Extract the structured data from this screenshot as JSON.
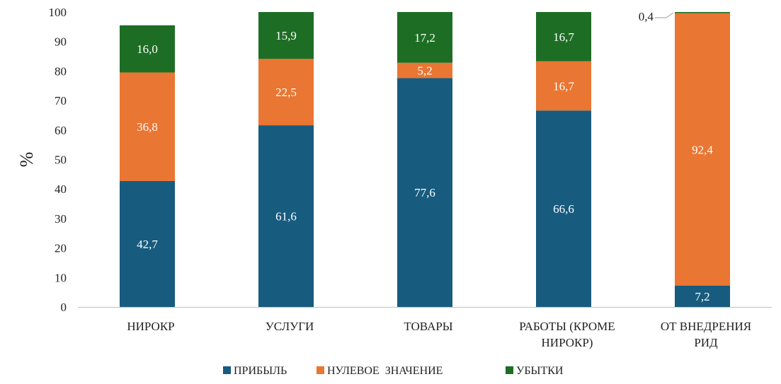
{
  "chart_data": {
    "type": "bar",
    "stacked": true,
    "categories": [
      [
        "НИРОКР"
      ],
      [
        "УСЛУГИ"
      ],
      [
        "ТОВАРЫ"
      ],
      [
        "РАБОТЫ (КРОМЕ",
        "НИРОКР)"
      ],
      [
        "ОТ ВНЕДРЕНИЯ",
        "РИД"
      ]
    ],
    "series": [
      {
        "name": "ПРИБЫЛЬ",
        "color": "#175b7e",
        "label_color": "#ffffff",
        "values": [
          42.7,
          61.6,
          77.6,
          66.6,
          7.2
        ],
        "labels": [
          "42,7",
          "61,6",
          "77,6",
          "66,6",
          "7,2"
        ]
      },
      {
        "name": "НУЛЕВОЕ  ЗНАЧЕНИЕ",
        "color": "#e97632",
        "label_color": "#ffffff",
        "values": [
          36.8,
          22.5,
          5.2,
          16.7,
          92.4
        ],
        "labels": [
          "36,8",
          "22,5",
          "5,2",
          "16,7",
          "92,4"
        ]
      },
      {
        "name": "УБЫТКИ",
        "color": "#1d6e24",
        "label_color": "#ffffff",
        "values": [
          16.0,
          15.9,
          17.2,
          16.7,
          0.4
        ],
        "labels": [
          "16,0",
          "15,9",
          "17,2",
          "16,7",
          "0,4"
        ]
      }
    ],
    "ylabel": "%",
    "ylim": [
      0,
      100
    ],
    "yticks": [
      0,
      10,
      20,
      30,
      40,
      50,
      60,
      70,
      80,
      90,
      100
    ],
    "grid": false,
    "legend_position": "bottom",
    "callout_label_index": [
      2,
      4
    ]
  }
}
